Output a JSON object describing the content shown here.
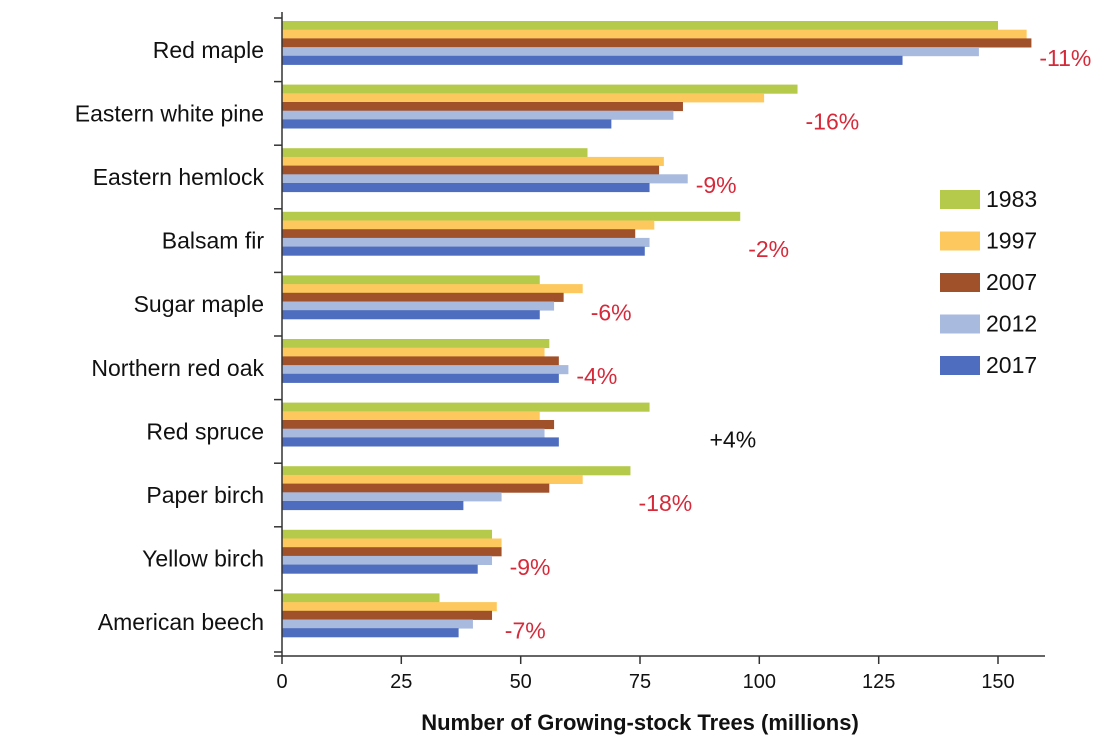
{
  "chart_data": {
    "type": "bar",
    "orientation": "horizontal",
    "title": "",
    "xlabel": "Number of Growing-stock Trees (millions)",
    "ylabel": "",
    "xlim": [
      0,
      160
    ],
    "xticks": [
      0,
      25,
      50,
      75,
      100,
      125,
      150
    ],
    "legend_position": "right",
    "categories": [
      "Red maple",
      "Eastern white pine",
      "Eastern hemlock",
      "Balsam fir",
      "Sugar maple",
      "Northern red oak",
      "Red spruce",
      "Paper birch",
      "Yellow birch",
      "American beech"
    ],
    "series": [
      {
        "name": "1983",
        "color": "#b5c94b",
        "values": [
          150,
          108,
          64,
          96,
          54,
          56,
          77,
          73,
          44,
          33
        ]
      },
      {
        "name": "1997",
        "color": "#fdc95f",
        "values": [
          156,
          101,
          80,
          78,
          63,
          55,
          54,
          63,
          46,
          45
        ]
      },
      {
        "name": "2007",
        "color": "#a0512a",
        "values": [
          157,
          84,
          79,
          74,
          59,
          58,
          57,
          56,
          46,
          44
        ]
      },
      {
        "name": "2012",
        "color": "#a9badf",
        "values": [
          146,
          82,
          85,
          77,
          57,
          60,
          55,
          46,
          44,
          40
        ]
      },
      {
        "name": "2017",
        "color": "#4f6dbf",
        "values": [
          130,
          69,
          77,
          76,
          54,
          58,
          58,
          38,
          41,
          37
        ]
      }
    ],
    "annotations": [
      {
        "category": "Red maple",
        "text": "-11%",
        "color": "#d62a3a"
      },
      {
        "category": "Eastern white pine",
        "text": "-16%",
        "color": "#d62a3a"
      },
      {
        "category": "Eastern hemlock",
        "text": "-9%",
        "color": "#d62a3a"
      },
      {
        "category": "Balsam fir",
        "text": "-2%",
        "color": "#d62a3a"
      },
      {
        "category": "Sugar maple",
        "text": "-6%",
        "color": "#d62a3a"
      },
      {
        "category": "Northern red oak",
        "text": "-4%",
        "color": "#d62a3a"
      },
      {
        "category": "Red spruce",
        "text": "+4%",
        "color": "#111111"
      },
      {
        "category": "Paper birch",
        "text": "-18%",
        "color": "#d62a3a"
      },
      {
        "category": "Yellow birch",
        "text": "-9%",
        "color": "#d62a3a"
      },
      {
        "category": "American beech",
        "text": "-7%",
        "color": "#d62a3a"
      }
    ]
  }
}
